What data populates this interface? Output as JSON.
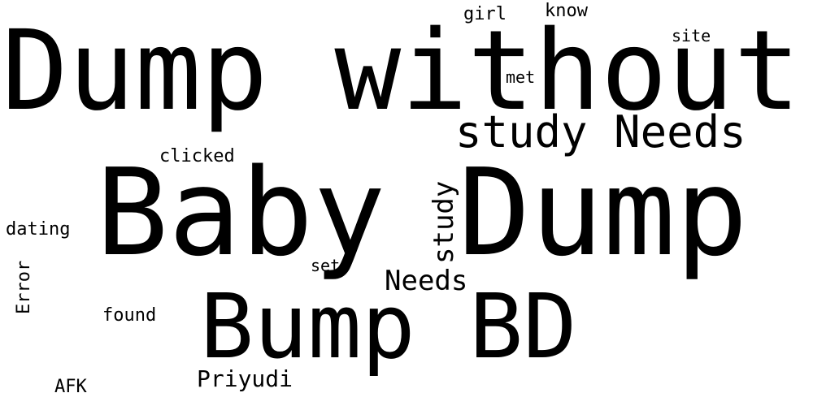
{
  "word_cloud": {
    "text_color": "#000000",
    "background_color": "#ffffff",
    "words": [
      {
        "text": "Dump without",
        "rotated": false
      },
      {
        "text": "Baby Dump",
        "rotated": false
      },
      {
        "text": "Bump BD",
        "rotated": false
      },
      {
        "text": "study Needs",
        "rotated": false
      },
      {
        "text": "study",
        "rotated": true
      },
      {
        "text": "Needs",
        "rotated": false
      },
      {
        "text": "Priyudi",
        "rotated": false
      },
      {
        "text": "girl",
        "rotated": false
      },
      {
        "text": "know",
        "rotated": false
      },
      {
        "text": "site",
        "rotated": false
      },
      {
        "text": "met",
        "rotated": false
      },
      {
        "text": "clicked",
        "rotated": false
      },
      {
        "text": "dating",
        "rotated": false
      },
      {
        "text": "set",
        "rotated": false
      },
      {
        "text": "Error",
        "rotated": true
      },
      {
        "text": "found",
        "rotated": false
      },
      {
        "text": "AFK",
        "rotated": false
      }
    ]
  }
}
